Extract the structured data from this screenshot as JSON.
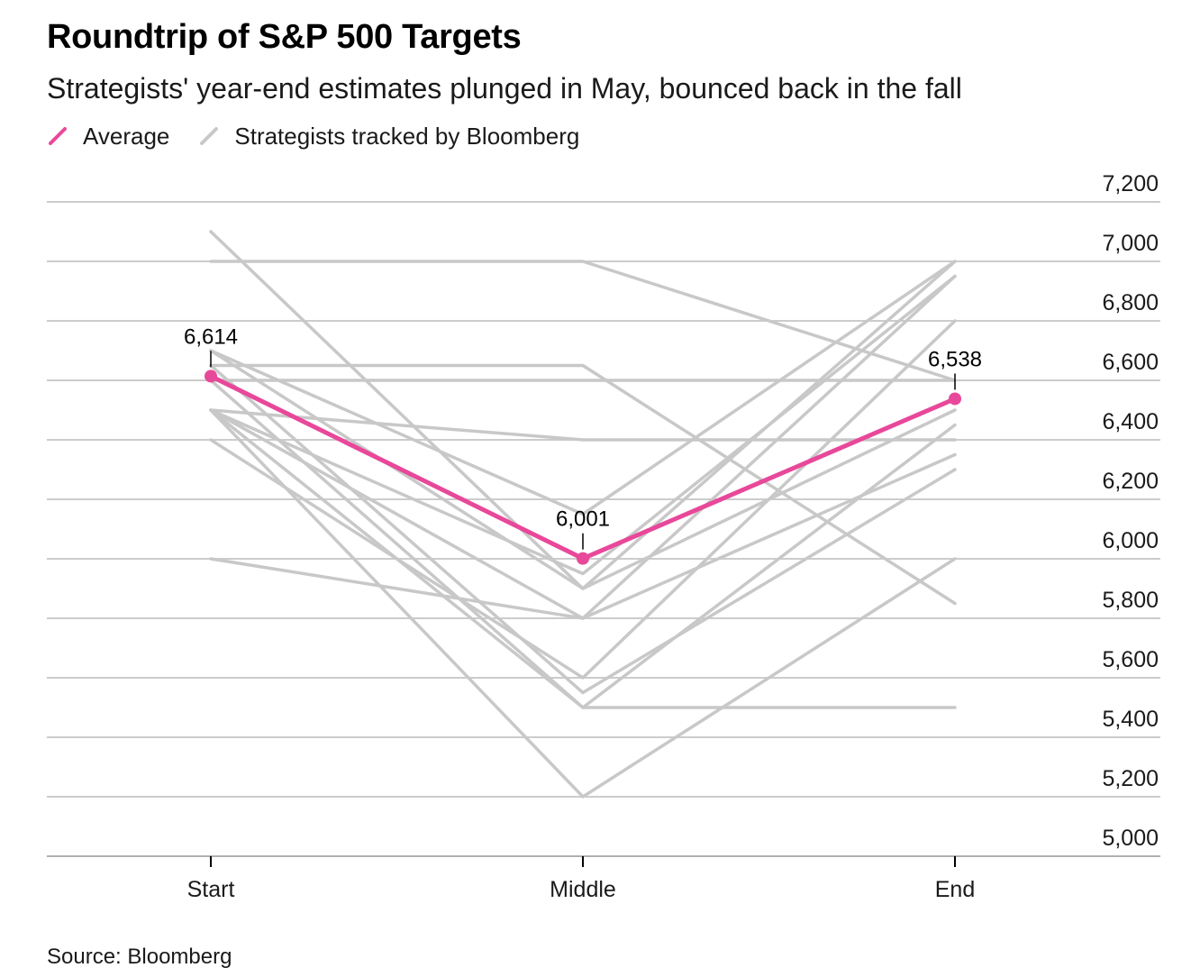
{
  "title": "Roundtrip of S&P 500 Targets",
  "subtitle": "Strategists' year-end estimates plunged in May, bounced back in the fall",
  "legend": [
    {
      "label": "Average",
      "color": "#e8489a"
    },
    {
      "label": "Strategists tracked by Bloomberg",
      "color": "#c8c8c8"
    }
  ],
  "source": "Source: Bloomberg",
  "colors": {
    "average": "#e8489a",
    "strategist": "#c8c8c8",
    "grid": "#cccccc",
    "axis": "#000000"
  },
  "chart_data": {
    "type": "line",
    "categories": [
      "Start",
      "Middle",
      "End"
    ],
    "ylim": [
      5000,
      7200
    ],
    "yticks": [
      5000,
      5200,
      5400,
      5600,
      5800,
      6000,
      6200,
      6400,
      6600,
      6800,
      7000,
      7200
    ],
    "ytick_labels": [
      "5,000",
      "5,200",
      "5,400",
      "5,600",
      "5,800",
      "6,000",
      "6,200",
      "6,400",
      "6,600",
      "6,800",
      "7,000",
      "7,200"
    ],
    "y_axis_position": "right",
    "grid": true,
    "legend_position": "top-left",
    "series": [
      {
        "name": "Average",
        "values": [
          6614,
          6001,
          6538
        ],
        "labels": [
          "6,614",
          "6,001",
          "6,538"
        ]
      },
      {
        "name": "Strategists tracked by Bloomberg",
        "lines": [
          [
            7000,
            7000,
            6600
          ],
          [
            7100,
            5900,
            7000
          ],
          [
            6700,
            6150,
            7000
          ],
          [
            6650,
            6650,
            5850
          ],
          [
            6600,
            6600,
            6600
          ],
          [
            6500,
            6400,
            6400
          ],
          [
            6500,
            5950,
            6950
          ],
          [
            6500,
            5800,
            6950
          ],
          [
            6500,
            5500,
            6450
          ],
          [
            6500,
            5200,
            6000
          ],
          [
            6400,
            5600,
            6800
          ],
          [
            6000,
            5800,
            6350
          ],
          [
            6700,
            5900,
            6500
          ],
          [
            6650,
            5550,
            6300
          ],
          [
            6600,
            5500,
            5500
          ]
        ]
      }
    ]
  }
}
